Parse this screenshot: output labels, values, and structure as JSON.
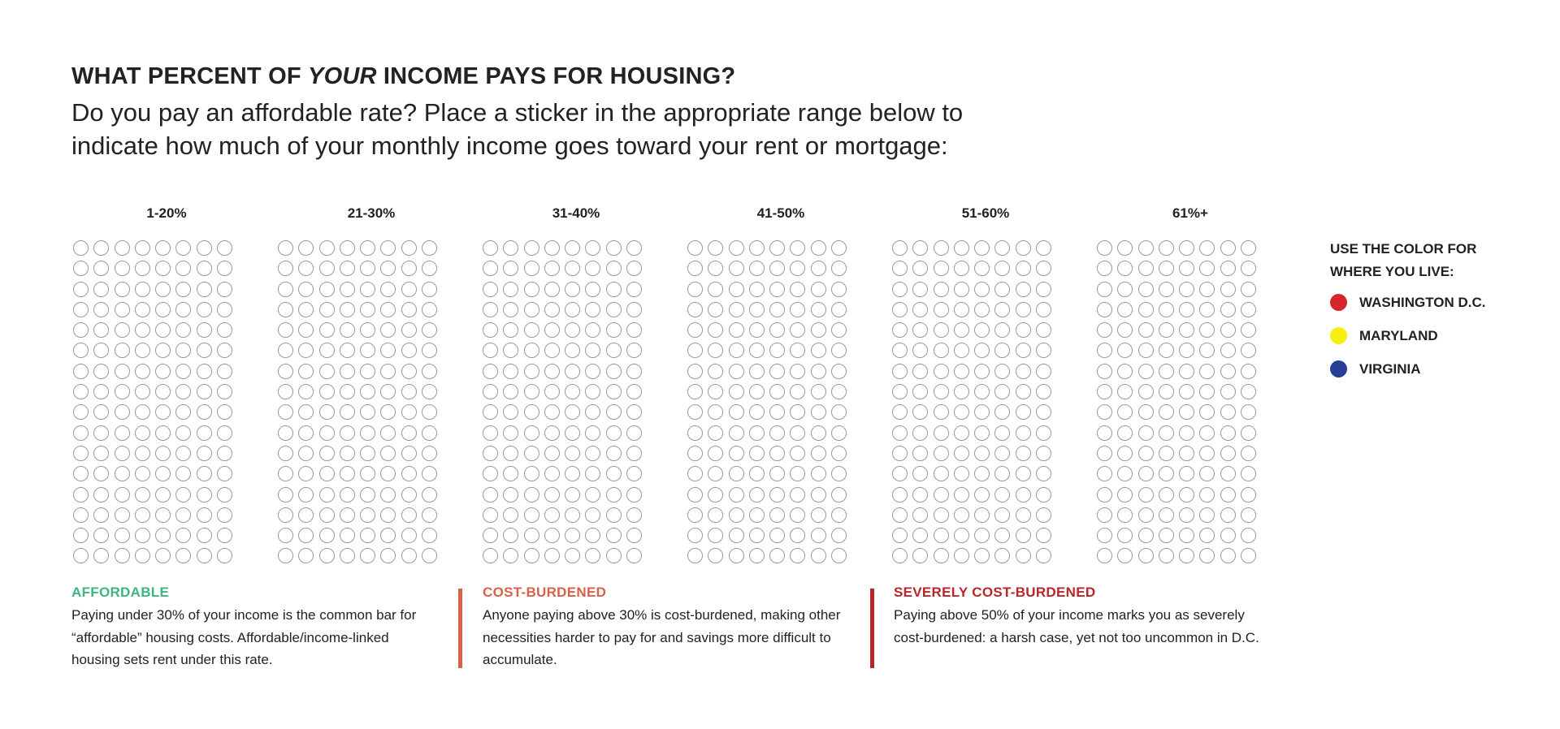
{
  "header": {
    "title_pre": "WHAT PERCENT OF ",
    "title_em": "YOUR",
    "title_post": " INCOME PAYS FOR HOUSING?",
    "subtitle": "Do you pay an affordable rate? Place a sticker in the appropriate range below to indicate how much of your monthly income goes toward your rent or mortgage:"
  },
  "ranges": [
    {
      "label": "1-20%"
    },
    {
      "label": "21-30%"
    },
    {
      "label": "31-40%"
    },
    {
      "label": "41-50%"
    },
    {
      "label": "51-60%"
    },
    {
      "label": "61%+"
    }
  ],
  "grid": {
    "rows": 16,
    "cols": 8
  },
  "legend": {
    "title": "USE THE COLOR FOR WHERE YOU LIVE:",
    "items": [
      {
        "label": "WASHINGTON D.C.",
        "color": "#d4252c"
      },
      {
        "label": "MARYLAND",
        "color": "#f7ee12"
      },
      {
        "label": "VIRGINIA",
        "color": "#263f96"
      }
    ]
  },
  "categories": [
    {
      "title": "AFFORDABLE",
      "color": "#3db57f",
      "text": "Paying under 30% of your income is the common bar for “affordable” housing costs. Affordable/income-linked housing sets rent under this rate."
    },
    {
      "title": "COST-BURDENED",
      "color": "#d9604a",
      "text": "Anyone paying above 30% is cost-burdened, making other necessities harder to pay for and savings more difficult to accumulate."
    },
    {
      "title": "SEVERELY COST-BURDENED",
      "color": "#b8262b",
      "text": "Paying above 50% of your income marks you as severely cost-burdened: a harsh case, yet not too uncommon in D.C."
    }
  ]
}
